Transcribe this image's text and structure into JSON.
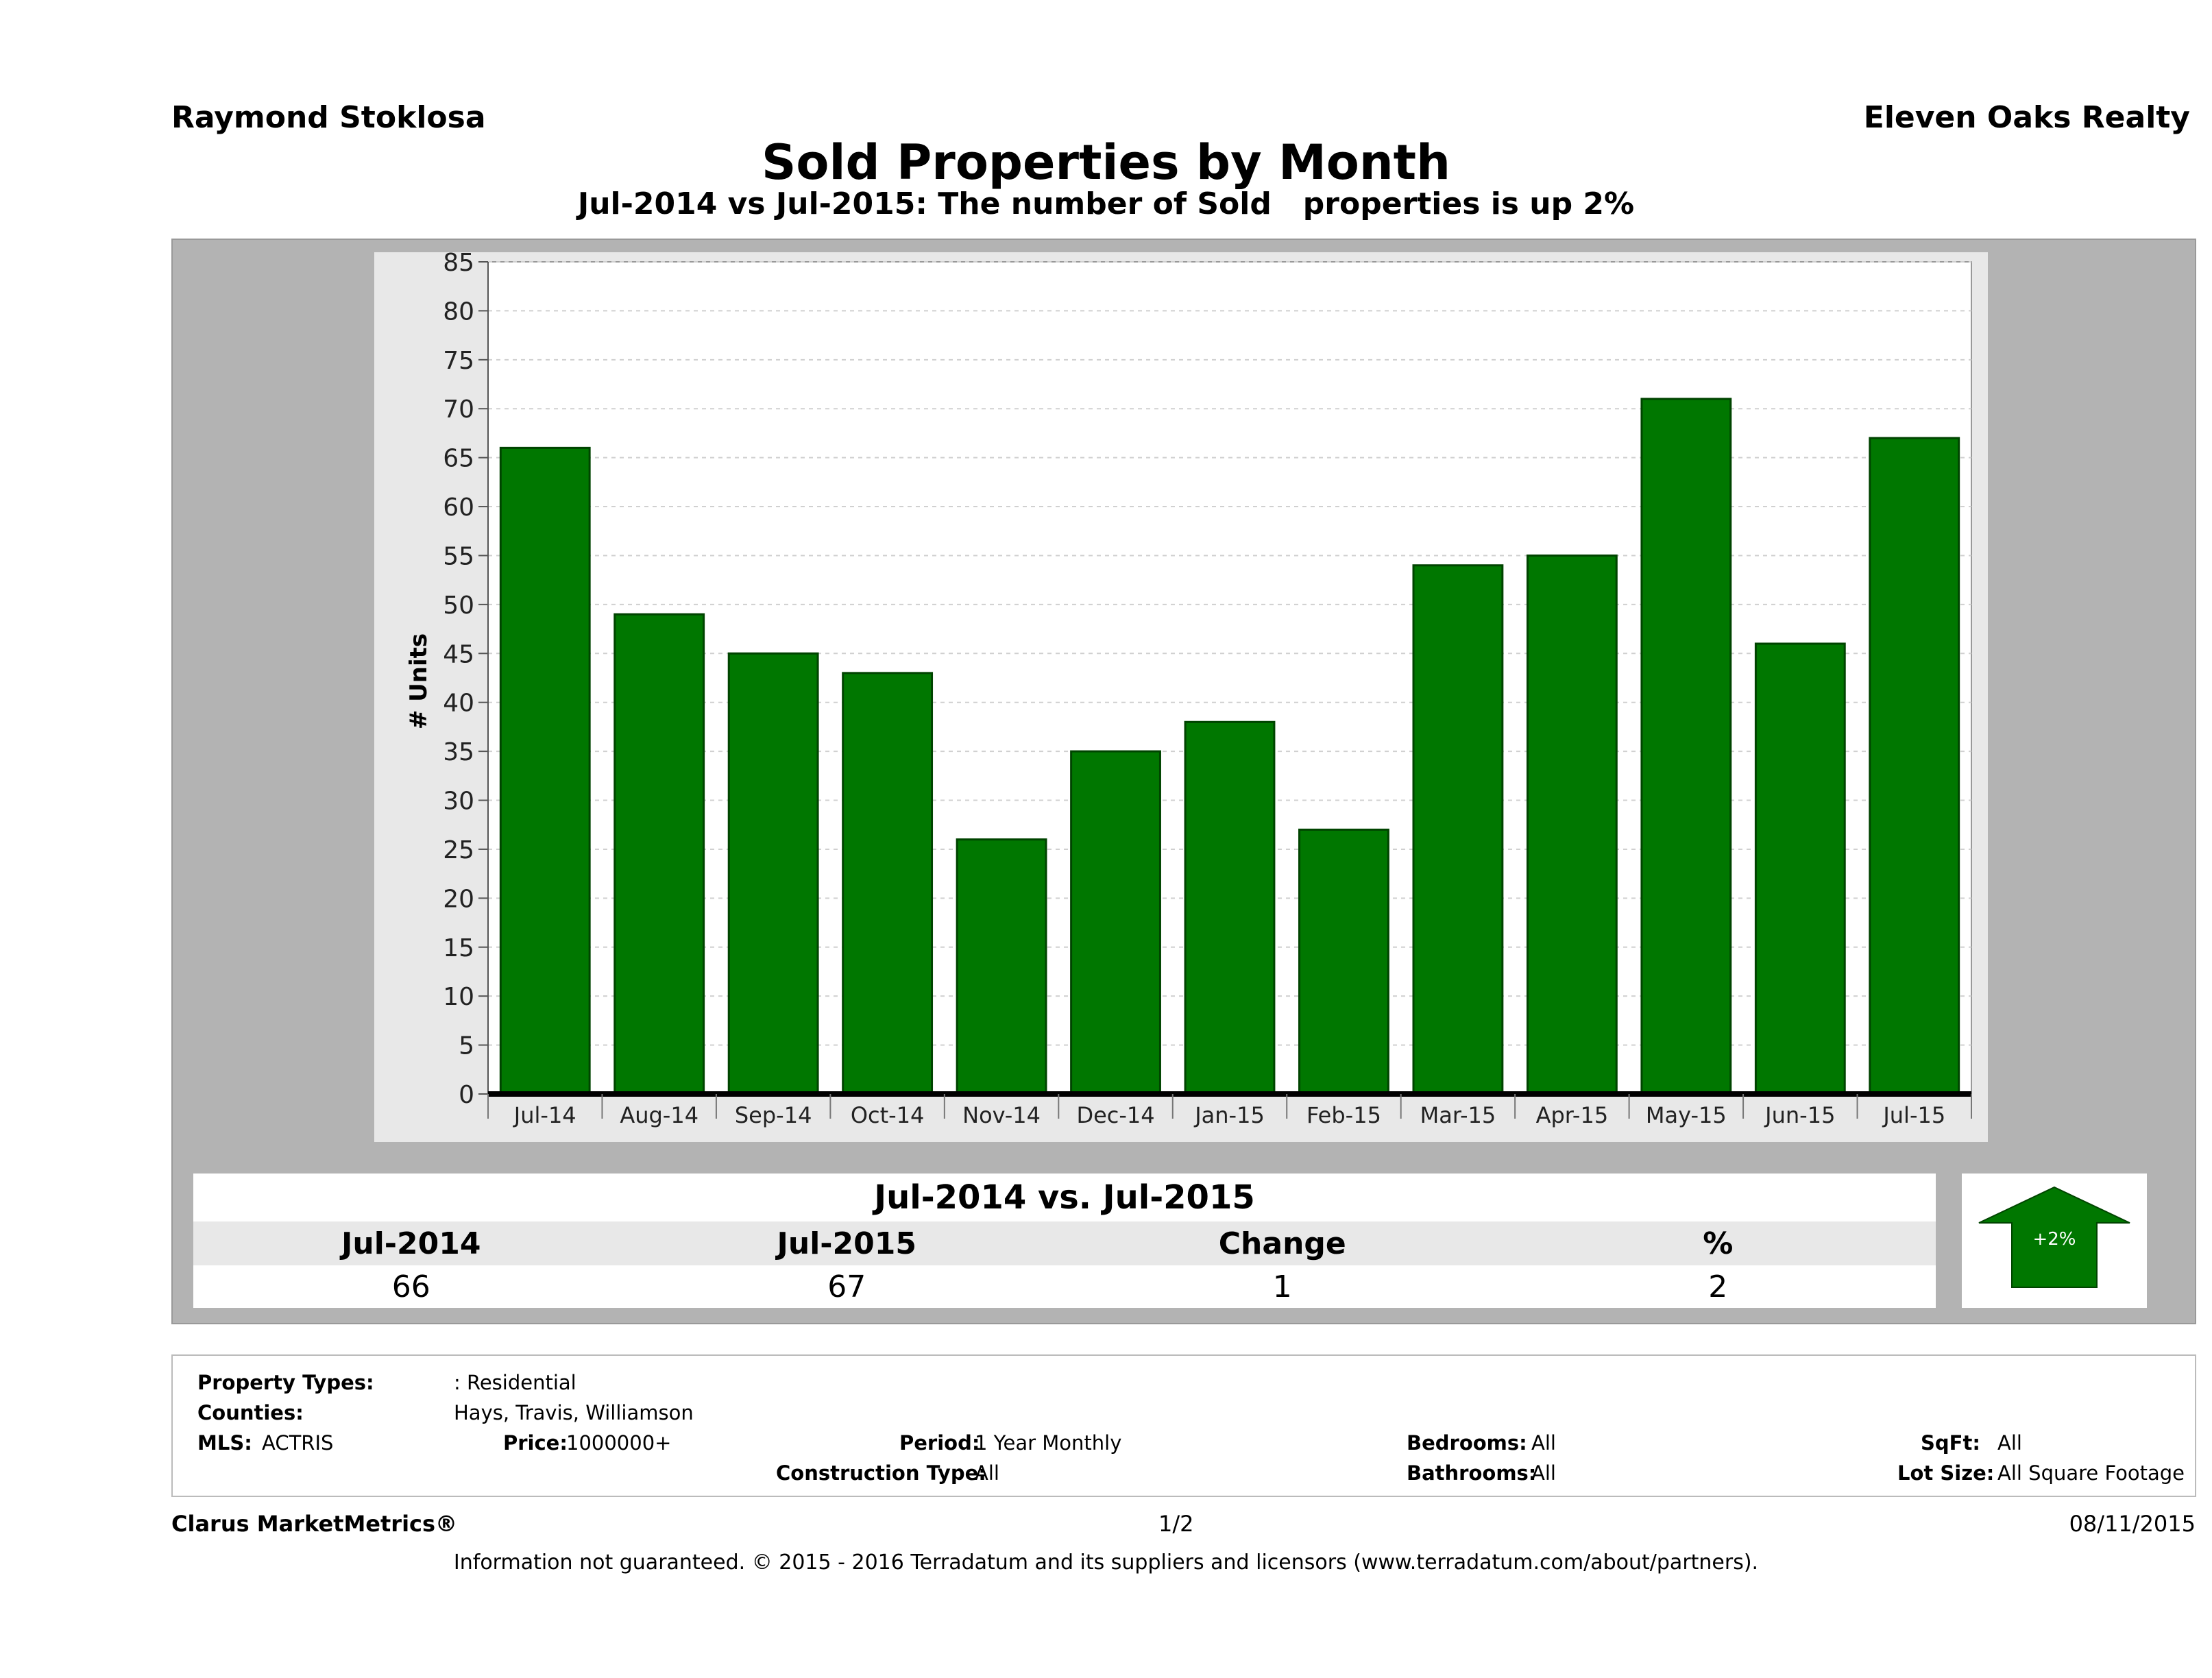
{
  "header": {
    "agent_name": "Raymond Stoklosa",
    "company_name": "Eleven Oaks Realty",
    "title": "Sold Properties by Month",
    "subtitle": "Jul-2014 vs Jul-2015: The number of Sold   properties is up 2%"
  },
  "chart_data": {
    "type": "bar",
    "title": "",
    "xlabel": "",
    "ylabel": "# Units",
    "ylim": [
      0,
      85
    ],
    "yticks": [
      0,
      5,
      10,
      15,
      20,
      25,
      30,
      35,
      40,
      45,
      50,
      55,
      60,
      65,
      70,
      75,
      80,
      85
    ],
    "grid": true,
    "categories": [
      "Jul-14",
      "Aug-14",
      "Sep-14",
      "Oct-14",
      "Nov-14",
      "Dec-14",
      "Jan-15",
      "Feb-15",
      "Mar-15",
      "Apr-15",
      "May-15",
      "Jun-15",
      "Jul-15"
    ],
    "values": [
      66,
      49,
      45,
      43,
      26,
      35,
      38,
      27,
      54,
      55,
      71,
      46,
      67
    ],
    "bar_color": "#007700",
    "bar_edge_color": "#004400"
  },
  "comparison": {
    "heading": "Jul-2014 vs. Jul-2015",
    "columns": [
      {
        "label": "Jul-2014",
        "value": "66"
      },
      {
        "label": "Jul-2015",
        "value": "67"
      },
      {
        "label": "Change",
        "value": "1"
      },
      {
        "label": "%",
        "value": "2"
      }
    ],
    "badge": {
      "text": "+2%",
      "direction": "up",
      "color": "#007700"
    }
  },
  "filters": {
    "property_types_label": "Property Types:",
    "property_types_value": ": Residential",
    "counties_label": "Counties:",
    "counties_value": "Hays, Travis, Williamson",
    "mls_label": "MLS:",
    "mls_value": "ACTRIS",
    "price_label": "Price:",
    "price_value": "1000000+",
    "period_label": "Period:",
    "period_value": "1 Year Monthly",
    "construction_label": "Construction Type:",
    "construction_value": "All",
    "bedrooms_label": "Bedrooms:",
    "bedrooms_value": "All",
    "bathrooms_label": "Bathrooms:",
    "bathrooms_value": "All",
    "sqft_label": "SqFt:",
    "sqft_value": "All",
    "lotsize_label": "Lot Size:",
    "lotsize_value": "All Square Footage"
  },
  "footer": {
    "brand": "Clarus MarketMetrics®",
    "page": "1/2",
    "date": "08/11/2015",
    "disclaimer": "Information not guaranteed. © 2015 - 2016 Terradatum and its suppliers and licensors (www.terradatum.com/about/partners)."
  }
}
